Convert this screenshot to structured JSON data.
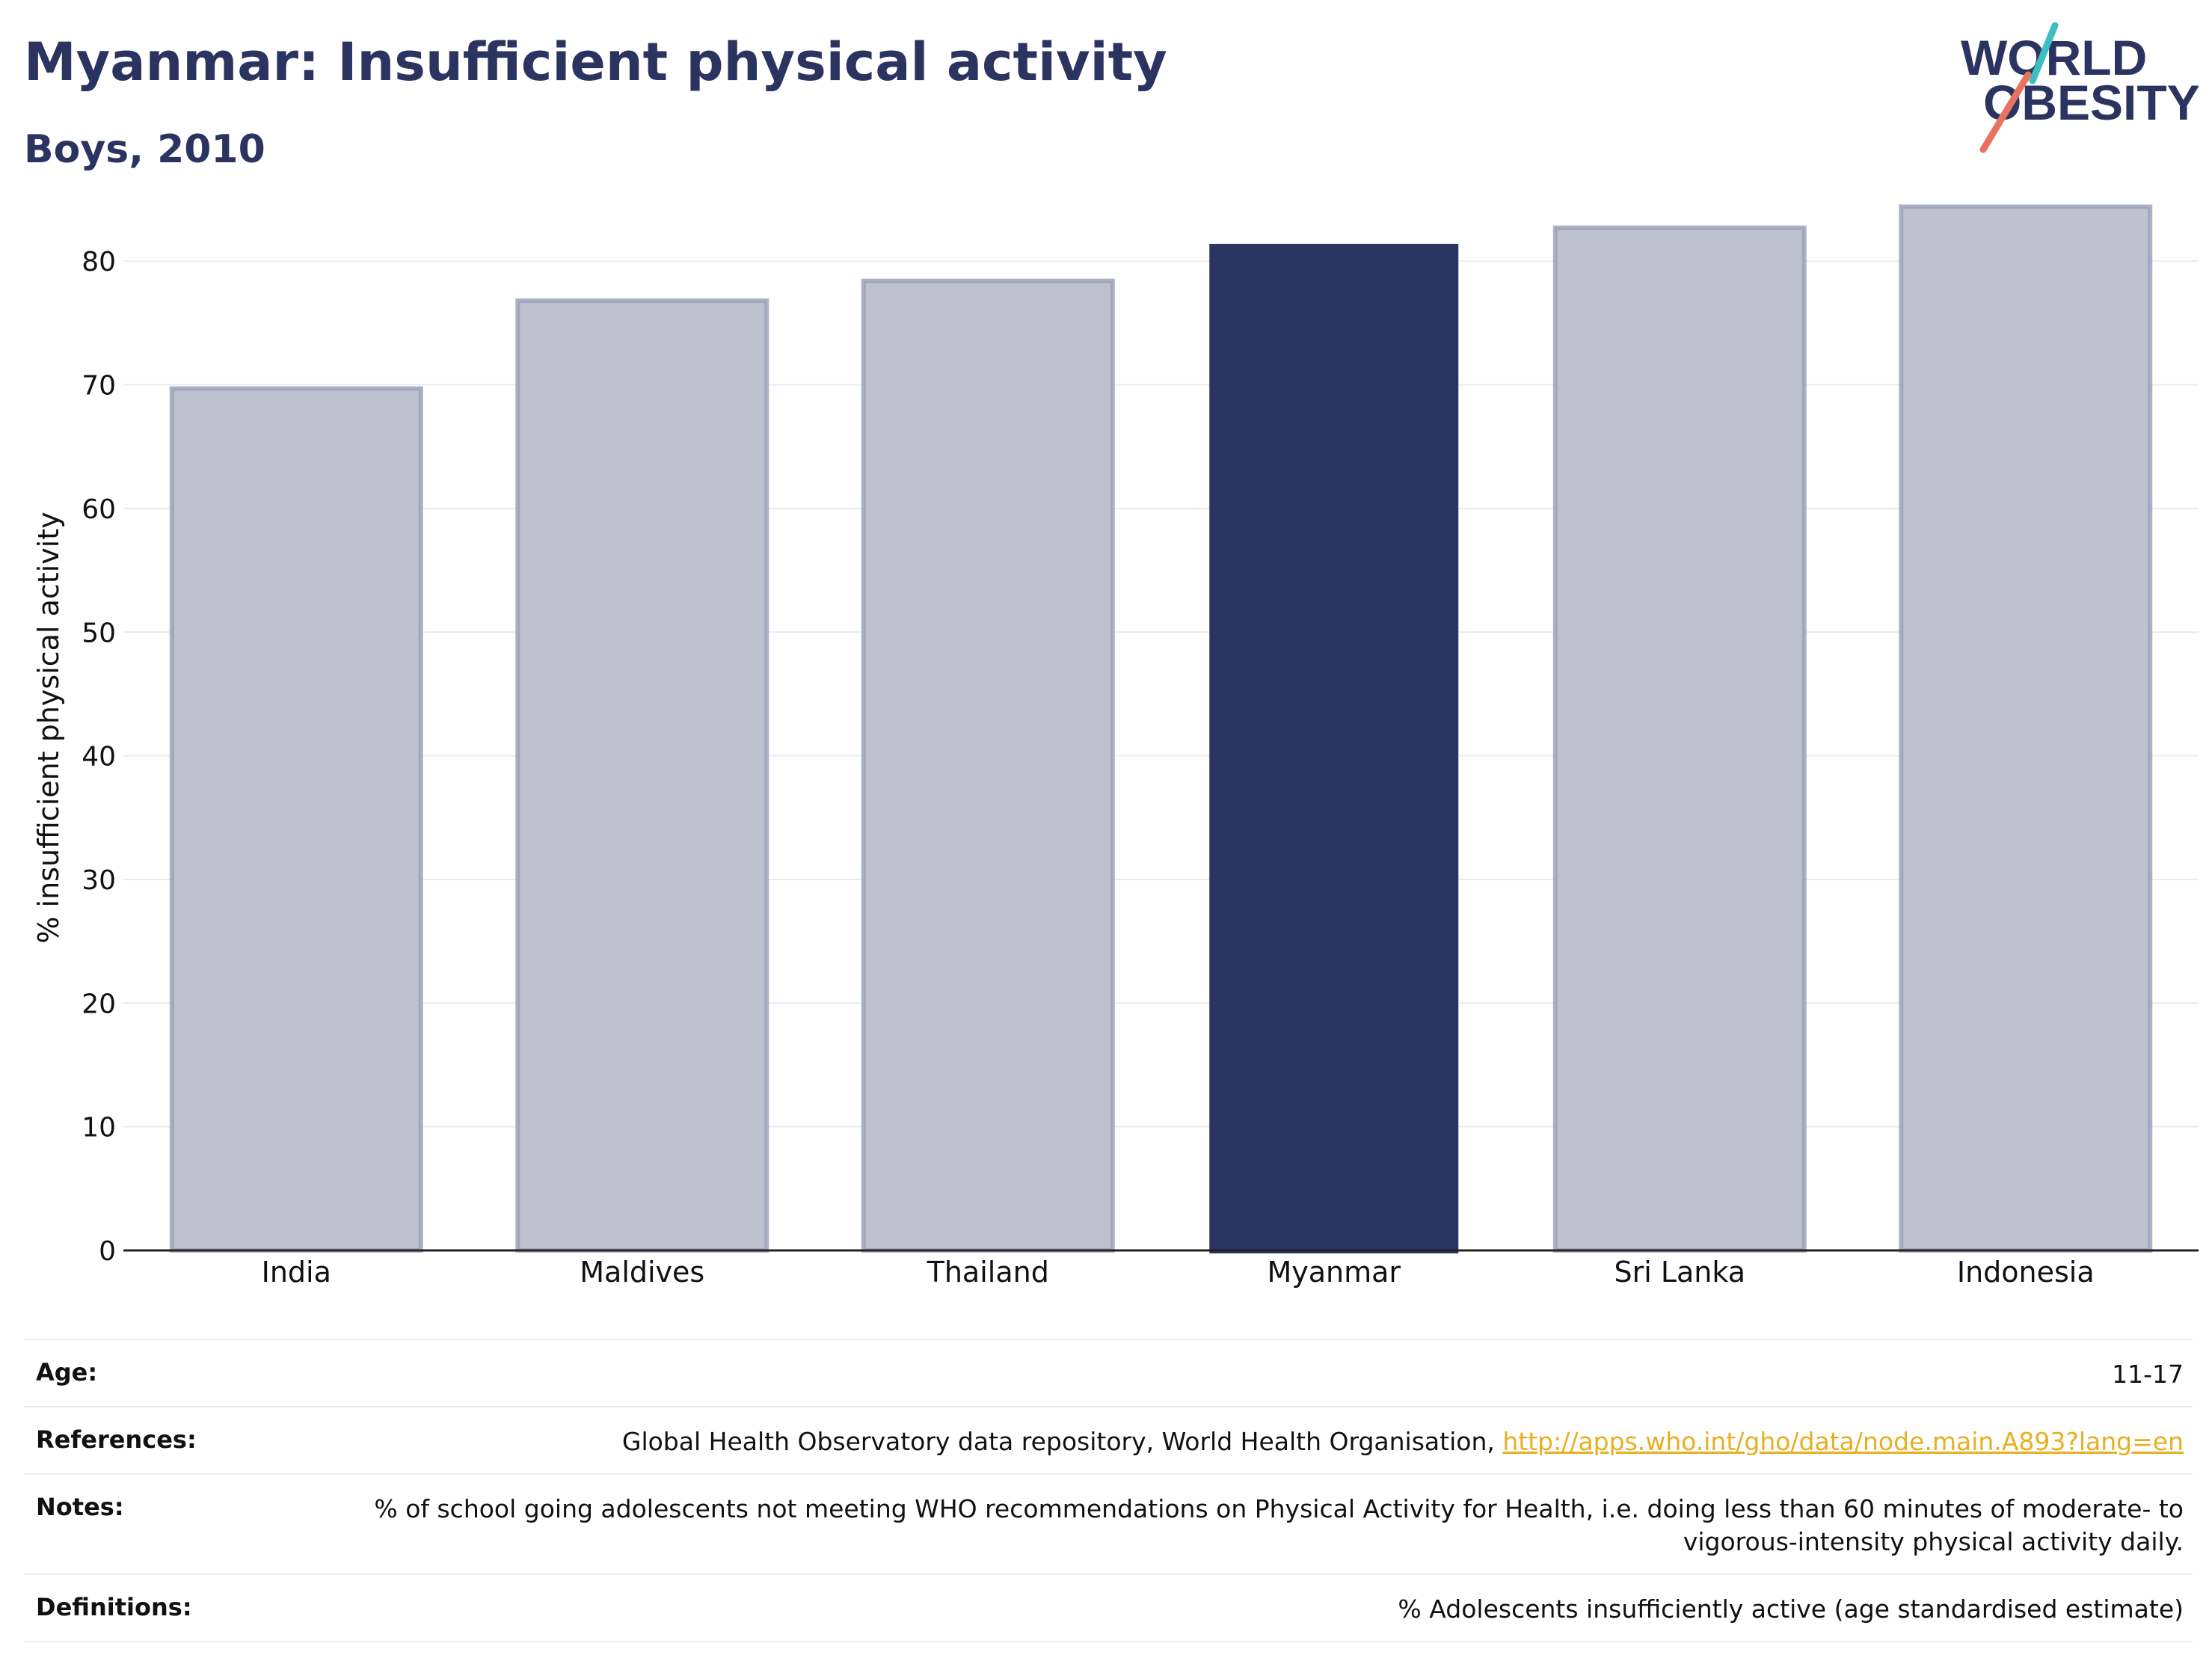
{
  "header": {
    "title": "Myanmar: Insufficient physical activity",
    "subtitle": "Boys, 2010"
  },
  "logo": {
    "line1": "WORLD",
    "line2": "OBESITY",
    "colors": {
      "text": "#2b3461",
      "slash_teal": "#3bbfc0",
      "slash_coral": "#e8735f"
    }
  },
  "chart_data": {
    "type": "bar",
    "categories": [
      "India",
      "Maldives",
      "Thailand",
      "Myanmar",
      "Sri Lanka",
      "Indonesia"
    ],
    "values": [
      69.7,
      76.8,
      78.4,
      81.4,
      82.7,
      84.4
    ],
    "highlight": "Myanmar",
    "ylabel": "% insufficient physical activity",
    "ylim": [
      0,
      86
    ],
    "yticks": [
      0,
      10,
      20,
      30,
      40,
      50,
      60,
      70,
      80
    ],
    "grid": true,
    "colors": {
      "highlight": "#2b3561",
      "other_fill": "#bfc2ce",
      "other_stroke": "#9a9fb8",
      "grid": "#e9ecef",
      "axis": "#222222"
    }
  },
  "meta": {
    "age": {
      "label": "Age:",
      "value": "11-17"
    },
    "references": {
      "label": "References:",
      "value": "Global Health Observatory data repository, World Health Organisation, ",
      "link": "http://apps.who.int/gho/data/node.main.A893?lang=en"
    },
    "notes": {
      "label": "Notes:",
      "value": "% of school going adolescents not meeting WHO recommendations on Physical Activity for Health, i.e. doing less than 60 minutes of moderate- to vigorous-intensity physical activity daily."
    },
    "definitions": {
      "label": "Definitions:",
      "value": "% Adolescents insufficiently active (age standardised estimate)"
    }
  }
}
